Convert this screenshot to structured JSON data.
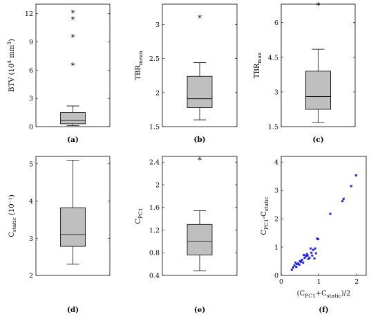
{
  "chart_data": [
    {
      "type": "boxplot",
      "caption": "(a)",
      "ylabel": "BTV (10⁴ mm³)",
      "ylim": [
        0,
        13
      ],
      "yticks": [
        0,
        3,
        6,
        9,
        12
      ],
      "box": {
        "min": 0.1,
        "q1": 0.3,
        "median": 0.65,
        "q3": 1.5,
        "max": 2.2
      },
      "outliers": [
        6.5,
        9.5,
        11.4,
        12.1
      ]
    },
    {
      "type": "boxplot",
      "caption": "(b)",
      "ylabel": "TBRmean",
      "ylim": [
        1.5,
        3.3
      ],
      "yticks": [
        1.5,
        2,
        2.5,
        3
      ],
      "box": {
        "min": 1.6,
        "q1": 1.78,
        "median": 1.91,
        "q3": 2.24,
        "max": 2.44
      },
      "outliers": [
        3.1
      ]
    },
    {
      "type": "boxplot",
      "caption": "(c)",
      "ylabel": "TBRmax",
      "ylim": [
        1.5,
        6.8
      ],
      "yticks": [
        1.5,
        3,
        4.5,
        6
      ],
      "box": {
        "min": 1.68,
        "q1": 2.25,
        "median": 2.8,
        "q3": 3.9,
        "max": 4.85
      },
      "outliers": [
        6.75
      ]
    },
    {
      "type": "boxplot",
      "caption": "(d)",
      "ylabel": "Cstatic (10⁻¹)",
      "ylim": [
        2,
        5.2
      ],
      "yticks": [
        2,
        3,
        4,
        5
      ],
      "box": {
        "min": 2.3,
        "q1": 2.78,
        "median": 3.1,
        "q3": 3.82,
        "max": 5.1
      },
      "outliers": []
    },
    {
      "type": "boxplot",
      "caption": "(e)",
      "ylabel": "CPC1",
      "ylim": [
        0.4,
        2.5
      ],
      "yticks": [
        0.4,
        0.8,
        1.2,
        1.6,
        2,
        2.4
      ],
      "box": {
        "min": 0.48,
        "q1": 0.76,
        "median": 1.0,
        "q3": 1.3,
        "max": 1.54
      },
      "outliers": [
        2.44
      ]
    },
    {
      "type": "scatter",
      "caption": "(f)",
      "xlabel": "(CPC1+Cstatic)/2",
      "ylabel": "CPC1-Cstatic",
      "xlim": [
        0,
        2.25
      ],
      "ylim": [
        0,
        4.2
      ],
      "xticks": [
        0,
        1,
        2
      ],
      "yticks": [
        0,
        1,
        2,
        3,
        4
      ],
      "points": [
        [
          0.28,
          0.2
        ],
        [
          0.32,
          0.28
        ],
        [
          0.35,
          0.35
        ],
        [
          0.4,
          0.3
        ],
        [
          0.38,
          0.45
        ],
        [
          0.45,
          0.42
        ],
        [
          0.5,
          0.5
        ],
        [
          0.48,
          0.38
        ],
        [
          0.55,
          0.55
        ],
        [
          0.58,
          0.45
        ],
        [
          0.62,
          0.62
        ],
        [
          0.6,
          0.72
        ],
        [
          0.65,
          0.68
        ],
        [
          0.7,
          0.7
        ],
        [
          0.72,
          0.58
        ],
        [
          0.75,
          0.62
        ],
        [
          0.78,
          0.95
        ],
        [
          0.8,
          0.8
        ],
        [
          0.82,
          0.7
        ],
        [
          0.85,
          0.9
        ],
        [
          0.88,
          0.6
        ],
        [
          0.9,
          0.95
        ],
        [
          0.92,
          0.78
        ],
        [
          0.95,
          1.3
        ],
        [
          0.98,
          1.28
        ],
        [
          0.68,
          0.75
        ],
        [
          0.42,
          0.4
        ],
        [
          0.52,
          0.48
        ],
        [
          1.3,
          2.17
        ],
        [
          1.62,
          2.62
        ],
        [
          1.65,
          2.7
        ],
        [
          1.85,
          3.15
        ],
        [
          1.98,
          3.53
        ]
      ]
    }
  ]
}
